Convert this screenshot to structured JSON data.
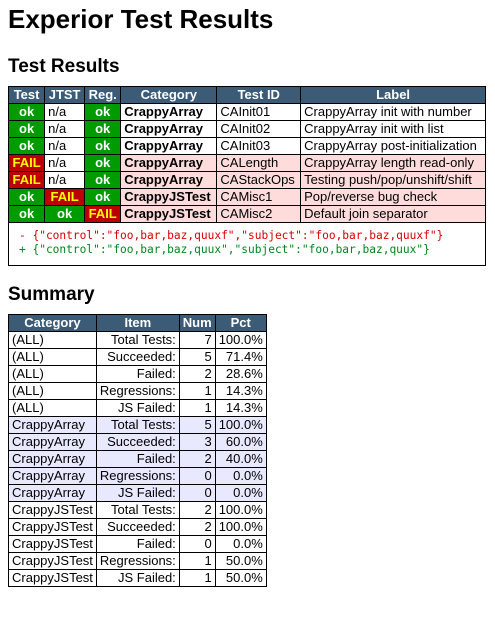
{
  "title": "Experior Test Results",
  "results": {
    "heading": "Test Results",
    "columns": [
      "Test",
      "JTST",
      "Reg.",
      "Category",
      "Test ID",
      "Label"
    ],
    "rows": [
      {
        "test": "ok",
        "jtst": "n/a",
        "reg": "ok",
        "category": "CrappyArray",
        "id": "CAInit01",
        "label": "CrappyArray init with number",
        "status": "pass"
      },
      {
        "test": "ok",
        "jtst": "n/a",
        "reg": "ok",
        "category": "CrappyArray",
        "id": "CAInit02",
        "label": "CrappyArray init with list",
        "status": "pass"
      },
      {
        "test": "ok",
        "jtst": "n/a",
        "reg": "ok",
        "category": "CrappyArray",
        "id": "CAInit03",
        "label": "CrappyArray post-initialization",
        "status": "pass"
      },
      {
        "test": "FAIL",
        "jtst": "n/a",
        "reg": "ok",
        "category": "CrappyArray",
        "id": "CALength",
        "label": "CrappyArray length read-only",
        "status": "fail"
      },
      {
        "test": "FAIL",
        "jtst": "n/a",
        "reg": "ok",
        "category": "CrappyArray",
        "id": "CAStackOps",
        "label": "Testing push/pop/unshift/shift",
        "status": "fail"
      },
      {
        "test": "ok",
        "jtst": "FAIL",
        "reg": "ok",
        "category": "CrappyJSTest",
        "id": "CAMisc1",
        "label": "Pop/reverse bug check",
        "status": "fail"
      },
      {
        "test": "ok",
        "jtst": "ok",
        "reg": "FAIL",
        "category": "CrappyJSTest",
        "id": "CAMisc2",
        "label": "Default join separator",
        "status": "fail"
      }
    ],
    "diff": {
      "minus": "- {\"control\":\"foo,bar,baz,quuxf\",\"subject\":\"foo,bar,baz,quuxf\"}",
      "plus": "+ {\"control\":\"foo,bar,baz,quux\",\"subject\":\"foo,bar,baz,quux\"}"
    }
  },
  "summary": {
    "heading": "Summary",
    "columns": [
      "Category",
      "Item",
      "Num",
      "Pct"
    ],
    "rows": [
      {
        "category": "(ALL)",
        "item": "Total Tests:",
        "num": "7",
        "pct": "100.0%",
        "alt": false
      },
      {
        "category": "(ALL)",
        "item": "Succeeded:",
        "num": "5",
        "pct": "71.4%",
        "alt": false
      },
      {
        "category": "(ALL)",
        "item": "Failed:",
        "num": "2",
        "pct": "28.6%",
        "alt": false
      },
      {
        "category": "(ALL)",
        "item": "Regressions:",
        "num": "1",
        "pct": "14.3%",
        "alt": false
      },
      {
        "category": "(ALL)",
        "item": "JS Failed:",
        "num": "1",
        "pct": "14.3%",
        "alt": false
      },
      {
        "category": "CrappyArray",
        "item": "Total Tests:",
        "num": "5",
        "pct": "100.0%",
        "alt": true
      },
      {
        "category": "CrappyArray",
        "item": "Succeeded:",
        "num": "3",
        "pct": "60.0%",
        "alt": true
      },
      {
        "category": "CrappyArray",
        "item": "Failed:",
        "num": "2",
        "pct": "40.0%",
        "alt": true
      },
      {
        "category": "CrappyArray",
        "item": "Regressions:",
        "num": "0",
        "pct": "0.0%",
        "alt": true
      },
      {
        "category": "CrappyArray",
        "item": "JS Failed:",
        "num": "0",
        "pct": "0.0%",
        "alt": true
      },
      {
        "category": "CrappyJSTest",
        "item": "Total Tests:",
        "num": "2",
        "pct": "100.0%",
        "alt": false
      },
      {
        "category": "CrappyJSTest",
        "item": "Succeeded:",
        "num": "2",
        "pct": "100.0%",
        "alt": false
      },
      {
        "category": "CrappyJSTest",
        "item": "Failed:",
        "num": "0",
        "pct": "0.0%",
        "alt": false
      },
      {
        "category": "CrappyJSTest",
        "item": "Regressions:",
        "num": "1",
        "pct": "50.0%",
        "alt": false
      },
      {
        "category": "CrappyJSTest",
        "item": "JS Failed:",
        "num": "1",
        "pct": "50.0%",
        "alt": false
      }
    ]
  },
  "colors": {
    "header_bg": "#3b5b77",
    "ok": "#009b00",
    "fail_bg": "#bb0000",
    "fail_text": "#ffff00",
    "fail_row": "#ffdcdc",
    "summary_alt": "#e8e8ff",
    "diff_minus": "#d80000",
    "diff_plus": "#00881c"
  }
}
